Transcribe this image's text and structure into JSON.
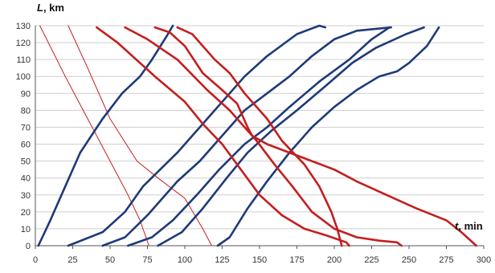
{
  "chart_data": {
    "type": "line",
    "title": "",
    "xlabel": {
      "var": "t",
      "unit": ", min"
    },
    "ylabel": {
      "var": "L",
      "unit": ", km"
    },
    "xlim": [
      0,
      300
    ],
    "ylim": [
      0,
      130
    ],
    "xticks": [
      0,
      25,
      50,
      75,
      100,
      125,
      150,
      175,
      200,
      225,
      250,
      275,
      300
    ],
    "yticks": [
      0,
      10,
      20,
      30,
      40,
      50,
      60,
      70,
      80,
      90,
      100,
      110,
      120,
      130
    ],
    "grid": "horizontal",
    "legend": "none",
    "colors": {
      "outbound": "#1f3a7a",
      "inbound": "#c41e1e",
      "grid": "#cfcfcf",
      "axis": "#555555"
    },
    "series": [
      {
        "direction": "inbound",
        "weight": "thin",
        "points": [
          [
            3,
            130
          ],
          [
            20,
            100
          ],
          [
            35,
            75
          ],
          [
            50,
            50
          ],
          [
            62,
            30
          ],
          [
            70,
            15
          ],
          [
            76,
            0
          ]
        ]
      },
      {
        "direction": "inbound",
        "weight": "thin",
        "points": [
          [
            22,
            130
          ],
          [
            35,
            105
          ],
          [
            50,
            75
          ],
          [
            68,
            50
          ],
          [
            82,
            40
          ],
          [
            100,
            28
          ],
          [
            112,
            10
          ],
          [
            118,
            0
          ]
        ]
      },
      {
        "direction": "outbound",
        "weight": "thick",
        "points": [
          [
            2,
            0
          ],
          [
            10,
            15
          ],
          [
            20,
            35
          ],
          [
            30,
            55
          ],
          [
            45,
            75
          ],
          [
            58,
            90
          ],
          [
            70,
            100
          ],
          [
            78,
            110
          ],
          [
            88,
            124
          ],
          [
            92,
            130
          ]
        ]
      },
      {
        "direction": "outbound",
        "weight": "thick",
        "points": [
          [
            22,
            0
          ],
          [
            45,
            8
          ],
          [
            60,
            20
          ],
          [
            72,
            35
          ],
          [
            95,
            55
          ],
          [
            110,
            70
          ],
          [
            125,
            85
          ],
          [
            140,
            100
          ],
          [
            155,
            112
          ],
          [
            175,
            125
          ],
          [
            190,
            130
          ],
          [
            194,
            129
          ]
        ]
      },
      {
        "direction": "outbound",
        "weight": "thick",
        "points": [
          [
            45,
            0
          ],
          [
            60,
            5
          ],
          [
            75,
            18
          ],
          [
            95,
            38
          ],
          [
            110,
            50
          ],
          [
            125,
            65
          ],
          [
            140,
            80
          ],
          [
            155,
            90
          ],
          [
            170,
            100
          ],
          [
            185,
            112
          ],
          [
            200,
            122
          ],
          [
            215,
            127
          ],
          [
            238,
            129
          ]
        ]
      },
      {
        "direction": "outbound",
        "weight": "thick",
        "points": [
          [
            62,
            0
          ],
          [
            78,
            5
          ],
          [
            92,
            15
          ],
          [
            108,
            30
          ],
          [
            123,
            45
          ],
          [
            140,
            60
          ],
          [
            155,
            70
          ],
          [
            170,
            82
          ],
          [
            190,
            97
          ],
          [
            210,
            110
          ],
          [
            225,
            122
          ],
          [
            237,
            129
          ]
        ]
      },
      {
        "direction": "outbound",
        "weight": "thick",
        "points": [
          [
            82,
            0
          ],
          [
            98,
            8
          ],
          [
            112,
            22
          ],
          [
            128,
            40
          ],
          [
            142,
            55
          ],
          [
            158,
            68
          ],
          [
            175,
            80
          ],
          [
            195,
            95
          ],
          [
            212,
            108
          ],
          [
            228,
            117
          ],
          [
            248,
            125
          ],
          [
            260,
            129
          ]
        ]
      },
      {
        "direction": "outbound",
        "weight": "thick",
        "points": [
          [
            122,
            0
          ],
          [
            130,
            5
          ],
          [
            142,
            22
          ],
          [
            155,
            38
          ],
          [
            170,
            55
          ],
          [
            185,
            70
          ],
          [
            200,
            82
          ],
          [
            215,
            92
          ],
          [
            230,
            100
          ],
          [
            242,
            103
          ],
          [
            250,
            108
          ],
          [
            262,
            118
          ],
          [
            270,
            129
          ]
        ]
      },
      {
        "direction": "inbound",
        "weight": "thick",
        "points": [
          [
            41,
            129
          ],
          [
            55,
            120
          ],
          [
            80,
            100
          ],
          [
            100,
            85
          ],
          [
            112,
            72
          ],
          [
            125,
            60
          ],
          [
            140,
            42
          ],
          [
            150,
            30
          ],
          [
            165,
            18
          ],
          [
            180,
            10
          ],
          [
            195,
            6
          ],
          [
            208,
            2
          ],
          [
            210,
            0
          ]
        ]
      },
      {
        "direction": "inbound",
        "weight": "thick",
        "points": [
          [
            60,
            129
          ],
          [
            75,
            122
          ],
          [
            95,
            110
          ],
          [
            115,
            92
          ],
          [
            130,
            80
          ],
          [
            148,
            62
          ],
          [
            160,
            48
          ],
          [
            172,
            35
          ],
          [
            185,
            20
          ],
          [
            200,
            10
          ],
          [
            215,
            5
          ],
          [
            230,
            3
          ],
          [
            242,
            2
          ],
          [
            245,
            0
          ]
        ]
      },
      {
        "direction": "inbound",
        "weight": "thick",
        "points": [
          [
            80,
            129
          ],
          [
            90,
            126
          ],
          [
            100,
            118
          ],
          [
            112,
            102
          ],
          [
            125,
            92
          ],
          [
            135,
            84
          ],
          [
            142,
            70
          ],
          [
            145,
            65
          ],
          [
            155,
            60
          ],
          [
            170,
            55
          ],
          [
            185,
            50
          ],
          [
            200,
            45
          ],
          [
            215,
            38
          ],
          [
            235,
            30
          ],
          [
            255,
            22
          ],
          [
            275,
            15
          ],
          [
            285,
            8
          ],
          [
            295,
            0
          ]
        ]
      },
      {
        "direction": "inbound",
        "weight": "thick",
        "points": [
          [
            95,
            129
          ],
          [
            105,
            125
          ],
          [
            120,
            110
          ],
          [
            130,
            102
          ],
          [
            140,
            90
          ],
          [
            155,
            75
          ],
          [
            165,
            62
          ],
          [
            180,
            48
          ],
          [
            190,
            35
          ],
          [
            198,
            20
          ],
          [
            202,
            10
          ],
          [
            205,
            0
          ]
        ]
      }
    ]
  }
}
